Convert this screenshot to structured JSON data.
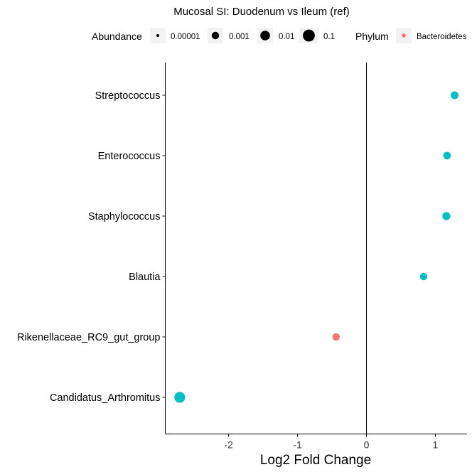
{
  "chart_data": {
    "type": "scatter",
    "title": "Mucosal SI: Duodenum vs Ileum (ref)",
    "xlabel": "Log2 Fold Change",
    "ylabel": "",
    "xlim": [
      -2.92,
      1.46
    ],
    "x_ticks": [
      -2,
      -1,
      0,
      1
    ],
    "x_tick_labels": [
      "-2",
      "-1",
      "0",
      "1"
    ],
    "categories": [
      "Streptococcus",
      "Enterococcus",
      "Staphylococcus",
      "Blautia",
      "Rikenellaceae_RC9_gut_group",
      "Candidatus_Arthromitus"
    ],
    "zero_reference_line": true,
    "grid": false,
    "points": [
      {
        "taxon": "Streptococcus",
        "x": 1.28,
        "abundance": 0.0015,
        "color": "#00BFC4"
      },
      {
        "taxon": "Enterococcus",
        "x": 1.17,
        "abundance": 0.0012,
        "color": "#00BFC4"
      },
      {
        "taxon": "Staphylococcus",
        "x": 1.16,
        "abundance": 0.002,
        "color": "#00BFC4"
      },
      {
        "taxon": "Blautia",
        "x": 0.83,
        "abundance": 0.001,
        "color": "#00BFC4"
      },
      {
        "taxon": "Rikenellaceae_RC9_gut_group",
        "x": -0.44,
        "abundance": 0.001,
        "color": "#F8766D"
      },
      {
        "taxon": "Candidatus_Arthromitus",
        "x": -2.71,
        "abundance": 0.03,
        "color": "#00BFC4"
      }
    ],
    "legend": {
      "placement": "top",
      "size": {
        "title": "Abundance",
        "entries": [
          {
            "label": "0.00001",
            "value": 1e-05
          },
          {
            "label": "0.001",
            "value": 0.001
          },
          {
            "label": "0.01",
            "value": 0.01
          },
          {
            "label": "0.1",
            "value": 0.1
          }
        ]
      },
      "color": {
        "title": "Phylum",
        "entries": [
          {
            "label": "Bacteroidetes",
            "color": "#F8766D"
          }
        ]
      }
    }
  }
}
